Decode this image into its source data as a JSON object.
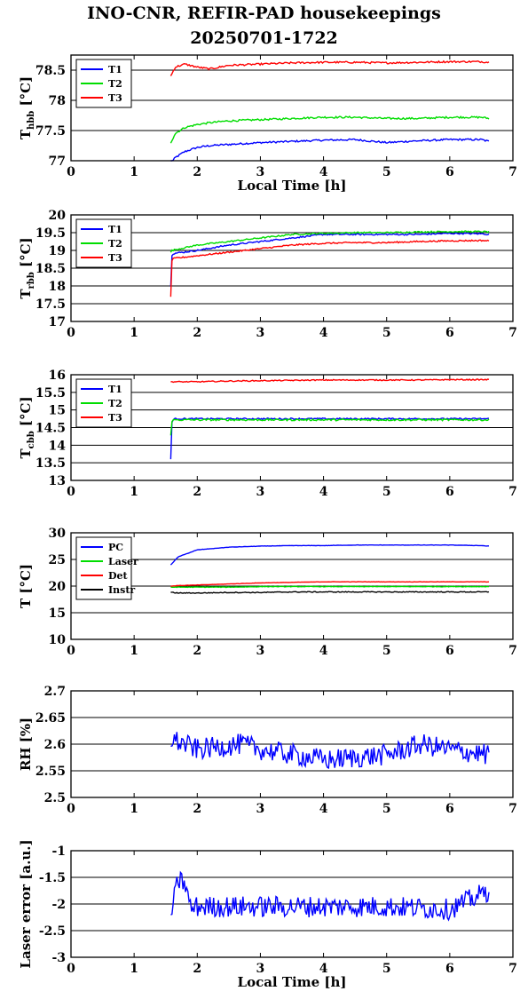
{
  "page": {
    "title_line1": "INO-CNR, REFIR-PAD housekeepings",
    "title_line2": "20250701-1722"
  },
  "chart_data": [
    {
      "type": "line",
      "ylabel": "T",
      "ylabel_sub": "hbb",
      "ylabel_unit": "[°C]",
      "xlabel": "Local Time [h]",
      "xlim": [
        0,
        7
      ],
      "ylim": [
        77,
        78.75
      ],
      "yticks": [
        77,
        77.5,
        78,
        78.5
      ],
      "ytick_labels": [
        "77",
        "77.5",
        "78",
        "78.5"
      ],
      "xticks": [
        0,
        1,
        2,
        3,
        4,
        5,
        6,
        7
      ],
      "grid": true,
      "legend": "top-left",
      "x": [
        1.58,
        1.65,
        1.8,
        2.0,
        2.2,
        2.5,
        3.0,
        3.5,
        4.0,
        4.5,
        5.0,
        5.5,
        6.0,
        6.5,
        6.62
      ],
      "series": [
        {
          "name": "T1",
          "color": "#0000ff",
          "noise": 0.015,
          "values": [
            76.95,
            77.05,
            77.15,
            77.22,
            77.25,
            77.27,
            77.3,
            77.32,
            77.34,
            77.35,
            77.3,
            77.33,
            77.35,
            77.35,
            77.32
          ]
        },
        {
          "name": "T2",
          "color": "#00dd00",
          "noise": 0.015,
          "values": [
            77.3,
            77.45,
            77.55,
            77.6,
            77.63,
            77.66,
            77.68,
            77.7,
            77.72,
            77.72,
            77.7,
            77.7,
            77.72,
            77.72,
            77.7
          ]
        },
        {
          "name": "T3",
          "color": "#ff0000",
          "noise": 0.015,
          "values": [
            78.4,
            78.55,
            78.6,
            78.55,
            78.52,
            78.58,
            78.6,
            78.62,
            78.63,
            78.63,
            78.62,
            78.63,
            78.64,
            78.64,
            78.63
          ]
        }
      ]
    },
    {
      "type": "line",
      "ylabel": "T",
      "ylabel_sub": "rbb",
      "ylabel_unit": "[°C]",
      "xlabel": "",
      "xlim": [
        0,
        7
      ],
      "ylim": [
        17,
        20
      ],
      "yticks": [
        17,
        17.5,
        18,
        18.5,
        19,
        19.5,
        20
      ],
      "ytick_labels": [
        "17",
        "17.5",
        "18",
        "18.5",
        "19",
        "19.5",
        "20"
      ],
      "xticks": [
        0,
        1,
        2,
        3,
        4,
        5,
        6,
        7
      ],
      "grid": true,
      "legend": "top-left",
      "x": [
        1.58,
        1.6,
        1.65,
        2.0,
        2.5,
        3.0,
        3.5,
        4.0,
        4.5,
        5.0,
        5.5,
        6.0,
        6.5,
        6.62
      ],
      "series": [
        {
          "name": "T1",
          "color": "#0000ff",
          "noise": 0.02,
          "values": [
            18.0,
            18.9,
            18.92,
            19.0,
            19.15,
            19.25,
            19.35,
            19.45,
            19.45,
            19.45,
            19.45,
            19.48,
            19.47,
            19.45
          ]
        },
        {
          "name": "T2",
          "color": "#00dd00",
          "noise": 0.02,
          "values": [
            18.95,
            19.0,
            19.02,
            19.15,
            19.25,
            19.35,
            19.45,
            19.48,
            19.5,
            19.5,
            19.52,
            19.53,
            19.53,
            19.52
          ]
        },
        {
          "name": "T3",
          "color": "#ff0000",
          "noise": 0.02,
          "values": [
            17.7,
            18.75,
            18.78,
            18.85,
            18.95,
            19.05,
            19.15,
            19.2,
            19.22,
            19.22,
            19.25,
            19.27,
            19.28,
            19.27
          ]
        }
      ]
    },
    {
      "type": "line",
      "ylabel": "T",
      "ylabel_sub": "cbb",
      "ylabel_unit": "[°C]",
      "xlabel": "",
      "xlim": [
        0,
        7
      ],
      "ylim": [
        13,
        16
      ],
      "yticks": [
        13,
        13.5,
        14,
        14.5,
        15,
        15.5,
        16
      ],
      "ytick_labels": [
        "13",
        "13.5",
        "14",
        "14.5",
        "15",
        "15.5",
        "16"
      ],
      "xticks": [
        0,
        1,
        2,
        3,
        4,
        5,
        6,
        7
      ],
      "grid": true,
      "legend": "top-left",
      "x": [
        1.58,
        1.6,
        1.65,
        2.0,
        2.5,
        3.0,
        3.5,
        4.0,
        4.5,
        5.0,
        5.5,
        6.0,
        6.5,
        6.62
      ],
      "series": [
        {
          "name": "T1",
          "color": "#0000ff",
          "noise": 0.02,
          "values": [
            13.6,
            14.7,
            14.75,
            14.75,
            14.75,
            14.75,
            14.75,
            14.75,
            14.75,
            14.75,
            14.75,
            14.75,
            14.75,
            14.75
          ]
        },
        {
          "name": "T2",
          "color": "#00dd00",
          "noise": 0.025,
          "values": [
            14.3,
            14.7,
            14.72,
            14.72,
            14.72,
            14.72,
            14.72,
            14.72,
            14.72,
            14.72,
            14.72,
            14.72,
            14.72,
            14.72
          ]
        },
        {
          "name": "T3",
          "color": "#ff0000",
          "noise": 0.015,
          "values": [
            15.8,
            15.8,
            15.8,
            15.8,
            15.82,
            15.83,
            15.84,
            15.85,
            15.85,
            15.85,
            15.85,
            15.86,
            15.86,
            15.86
          ]
        }
      ]
    },
    {
      "type": "line",
      "ylabel": "T [°C]",
      "xlabel": "",
      "xlim": [
        0,
        7
      ],
      "ylim": [
        10,
        30
      ],
      "yticks": [
        10,
        15,
        20,
        25,
        30
      ],
      "ytick_labels": [
        "10",
        "15",
        "20",
        "25",
        "30"
      ],
      "xticks": [
        0,
        1,
        2,
        3,
        4,
        5,
        6,
        7
      ],
      "grid": true,
      "legend": "top-left",
      "x": [
        1.58,
        1.7,
        2.0,
        2.5,
        3.0,
        3.5,
        4.0,
        4.5,
        5.0,
        5.5,
        6.0,
        6.5,
        6.62
      ],
      "series": [
        {
          "name": "PC",
          "color": "#0000ff",
          "noise": 0.03,
          "values": [
            24.0,
            25.5,
            26.8,
            27.3,
            27.5,
            27.6,
            27.6,
            27.7,
            27.7,
            27.7,
            27.7,
            27.6,
            27.5
          ]
        },
        {
          "name": "Laser",
          "color": "#00dd00",
          "noise": 0.05,
          "values": [
            19.8,
            19.8,
            19.8,
            19.8,
            19.9,
            19.9,
            19.9,
            19.9,
            19.9,
            19.9,
            19.9,
            19.9,
            19.9
          ]
        },
        {
          "name": "Det",
          "color": "#ff0000",
          "noise": 0.03,
          "values": [
            20.0,
            20.1,
            20.2,
            20.4,
            20.6,
            20.7,
            20.8,
            20.8,
            20.8,
            20.8,
            20.8,
            20.8,
            20.8
          ]
        },
        {
          "name": "Instr",
          "color": "#000000",
          "noise": 0.08,
          "values": [
            18.8,
            18.7,
            18.7,
            18.8,
            18.8,
            18.9,
            18.9,
            18.9,
            18.9,
            18.9,
            18.9,
            18.9,
            18.9
          ]
        }
      ]
    },
    {
      "type": "line",
      "ylabel": "RH [%]",
      "xlabel": "",
      "xlim": [
        0,
        7
      ],
      "ylim": [
        2.5,
        2.7
      ],
      "yticks": [
        2.5,
        2.55,
        2.6,
        2.65,
        2.7
      ],
      "ytick_labels": [
        "2.5",
        "2.55",
        "2.6",
        "2.65",
        "2.7"
      ],
      "xticks": [
        0,
        1,
        2,
        3,
        4,
        5,
        6,
        7
      ],
      "grid": true,
      "legend": "none",
      "x": [
        1.58,
        2.0,
        2.7,
        3.0,
        4.05,
        5.0,
        5.55,
        6.0,
        6.62
      ],
      "series": [
        {
          "color": "#0000ff",
          "noise": 0.02,
          "values": [
            2.61,
            2.59,
            2.6,
            2.59,
            2.57,
            2.58,
            2.6,
            2.59,
            2.58
          ]
        }
      ]
    },
    {
      "type": "line",
      "ylabel": "Laser error [a.u.]",
      "xlabel": "Local Time [h]",
      "xlim": [
        0,
        7
      ],
      "ylim": [
        -3,
        -1
      ],
      "yticks": [
        -3,
        -2.5,
        -2,
        -1.5,
        -1
      ],
      "ytick_labels": [
        "-3",
        "-2.5",
        "-2",
        "-1.5",
        "-1"
      ],
      "xticks": [
        0,
        1,
        2,
        3,
        4,
        5,
        6,
        7
      ],
      "grid": true,
      "legend": "none",
      "x": [
        1.58,
        1.7,
        1.8,
        1.9,
        2.0,
        3.0,
        4.0,
        5.0,
        6.0,
        6.62
      ],
      "series": [
        {
          "color": "#0000ff",
          "noise": 0.2,
          "values": [
            -2.2,
            -1.55,
            -1.6,
            -2.1,
            -2.05,
            -2.05,
            -2.05,
            -2.05,
            -2.1,
            -1.75
          ]
        }
      ]
    }
  ]
}
